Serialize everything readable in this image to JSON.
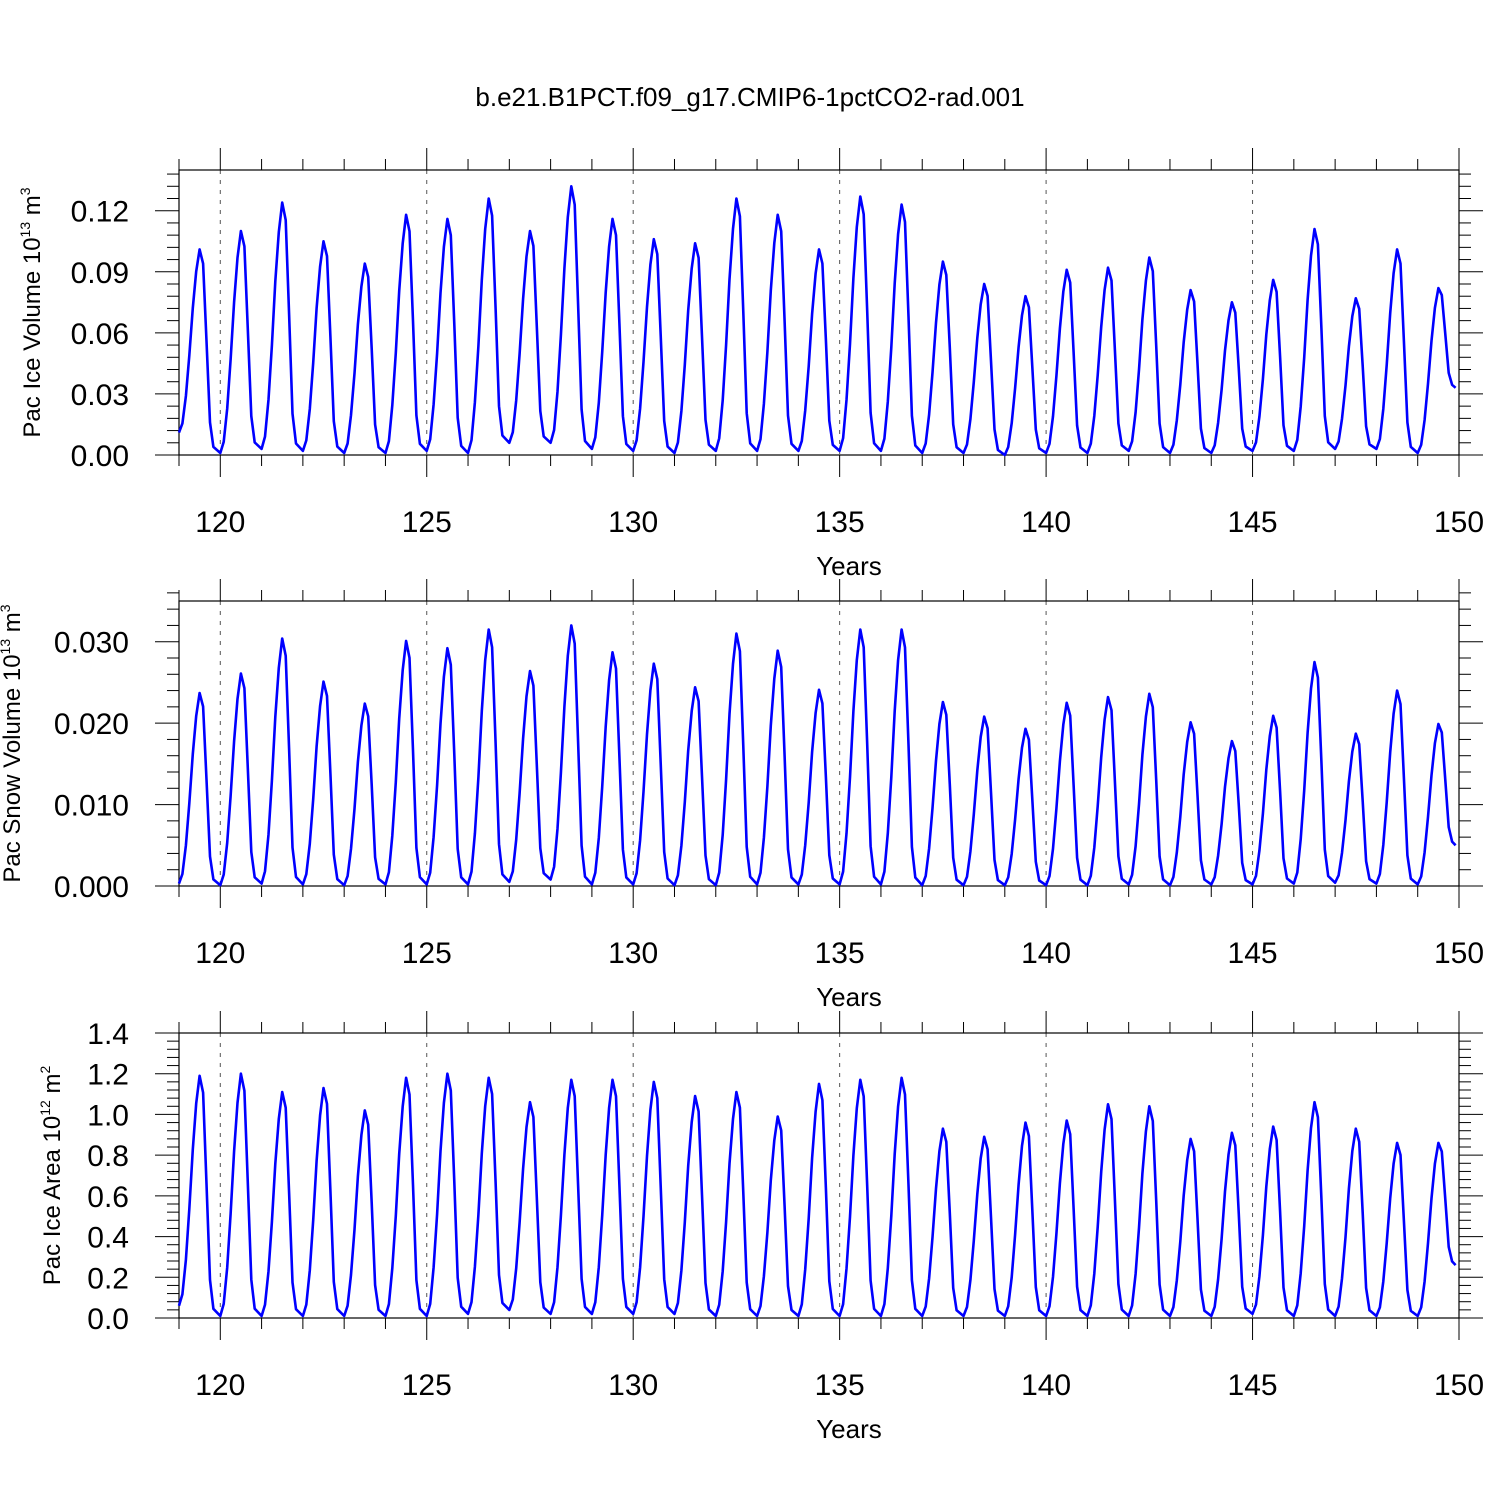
{
  "page": {
    "title": "b.e21.B1PCT.f09_g17.CMIP6-1pctCO2-rad.001"
  },
  "colors": {
    "series": "#0000ff",
    "axis": "#000000",
    "grid": "#555555",
    "background": "#ffffff"
  },
  "chart_data": [
    {
      "type": "line",
      "ylabel": {
        "text": "Pac Ice Volume 10",
        "exp": "13",
        "unit": " m",
        "unit_exp": "3"
      },
      "xlabel": "Years",
      "xlim": [
        119,
        150
      ],
      "ylim": [
        0,
        0.14
      ],
      "yticks": [
        0.0,
        0.03,
        0.06,
        0.09,
        0.12
      ],
      "ytick_labels": [
        "0.00",
        "0.03",
        "0.06",
        "0.09",
        "0.12"
      ],
      "xticks": [
        120,
        125,
        130,
        135,
        140,
        145,
        150
      ],
      "xtick_labels": [
        "120",
        "125",
        "130",
        "135",
        "140",
        "145",
        "150"
      ],
      "vertical_grid_dashed": true,
      "series": [
        {
          "color": "#0000ff",
          "start_year": 119,
          "peaks": [
            0.101,
            0.11,
            0.124,
            0.105,
            0.094,
            0.118,
            0.116,
            0.126,
            0.11,
            0.132,
            0.116,
            0.106,
            0.104,
            0.126,
            0.118,
            0.101,
            0.127,
            0.123,
            0.095,
            0.084,
            0.078,
            0.091,
            0.092,
            0.097,
            0.081,
            0.075,
            0.086,
            0.111,
            0.077,
            0.101,
            0.082
          ],
          "troughs": [
            0.011,
            0.001,
            0.003,
            0.002,
            0.001,
            0.001,
            0.002,
            0.001,
            0.006,
            0.006,
            0.003,
            0.002,
            0.001,
            0.002,
            0.002,
            0.002,
            0.002,
            0.002,
            0.001,
            0.001,
            0.0,
            0.001,
            0.001,
            0.002,
            0.001,
            0.001,
            0.002,
            0.002,
            0.003,
            0.003,
            0.001
          ],
          "end_value": 0.033
        }
      ]
    },
    {
      "type": "line",
      "ylabel": {
        "text": "Pac Snow Volume 10",
        "exp": "13",
        "unit": " m",
        "unit_exp": "3"
      },
      "xlabel": "Years",
      "xlim": [
        119,
        150
      ],
      "ylim": [
        0,
        0.035
      ],
      "yticks": [
        0.0,
        0.01,
        0.02,
        0.03
      ],
      "ytick_labels": [
        "0.000",
        "0.010",
        "0.020",
        "0.030"
      ],
      "xticks": [
        120,
        125,
        130,
        135,
        140,
        145,
        150
      ],
      "xtick_labels": [
        "120",
        "125",
        "130",
        "135",
        "140",
        "145",
        "150"
      ],
      "vertical_grid_dashed": true,
      "series": [
        {
          "color": "#0000ff",
          "start_year": 119,
          "peaks": [
            0.0237,
            0.0261,
            0.0304,
            0.0251,
            0.0224,
            0.0301,
            0.0292,
            0.0315,
            0.0264,
            0.032,
            0.0287,
            0.0273,
            0.0244,
            0.031,
            0.0289,
            0.0241,
            0.0315,
            0.0315,
            0.0226,
            0.0208,
            0.0193,
            0.0225,
            0.0232,
            0.0236,
            0.0201,
            0.0178,
            0.0209,
            0.0275,
            0.0187,
            0.024,
            0.0199
          ],
          "troughs": [
            0.0003,
            0.0001,
            0.0003,
            0.0002,
            0.0001,
            0.0002,
            0.0002,
            0.0002,
            0.0005,
            0.0008,
            0.0002,
            0.0002,
            0.0001,
            0.0001,
            0.0002,
            0.0002,
            0.0002,
            0.0002,
            0.0001,
            0.0001,
            0.0001,
            0.0001,
            0.0001,
            0.0002,
            0.0001,
            0.0002,
            0.0002,
            0.0003,
            0.0004,
            0.0003,
            0.0002
          ],
          "end_value": 0.005
        }
      ]
    },
    {
      "type": "line",
      "ylabel": {
        "text": "Pac Ice Area 10",
        "exp": "12",
        "unit": " m",
        "unit_exp": "2"
      },
      "xlabel": "Years",
      "xlim": [
        119,
        150
      ],
      "ylim": [
        0,
        1.4
      ],
      "yticks": [
        0.0,
        0.2,
        0.4,
        0.6,
        0.8,
        1.0,
        1.2,
        1.4
      ],
      "ytick_labels": [
        "0.0",
        "0.2",
        "0.4",
        "0.6",
        "0.8",
        "1.0",
        "1.2",
        "1.4"
      ],
      "xticks": [
        120,
        125,
        130,
        135,
        140,
        145,
        150
      ],
      "xtick_labels": [
        "120",
        "125",
        "130",
        "135",
        "140",
        "145",
        "150"
      ],
      "vertical_grid_dashed": true,
      "series": [
        {
          "color": "#0000ff",
          "start_year": 119,
          "peaks": [
            1.19,
            1.2,
            1.11,
            1.13,
            1.02,
            1.18,
            1.2,
            1.18,
            1.06,
            1.17,
            1.17,
            1.16,
            1.09,
            1.11,
            0.99,
            1.15,
            1.17,
            1.18,
            0.93,
            0.89,
            0.96,
            0.97,
            1.05,
            1.04,
            0.88,
            0.91,
            0.94,
            1.06,
            0.93,
            0.86,
            0.86
          ],
          "troughs": [
            0.06,
            0.01,
            0.01,
            0.01,
            0.01,
            0.01,
            0.01,
            0.02,
            0.04,
            0.02,
            0.02,
            0.02,
            0.02,
            0.01,
            0.01,
            0.01,
            0.01,
            0.01,
            0.01,
            0.01,
            0.01,
            0.01,
            0.01,
            0.01,
            0.01,
            0.01,
            0.02,
            0.01,
            0.01,
            0.01,
            0.01
          ],
          "end_value": 0.26
        }
      ]
    }
  ]
}
